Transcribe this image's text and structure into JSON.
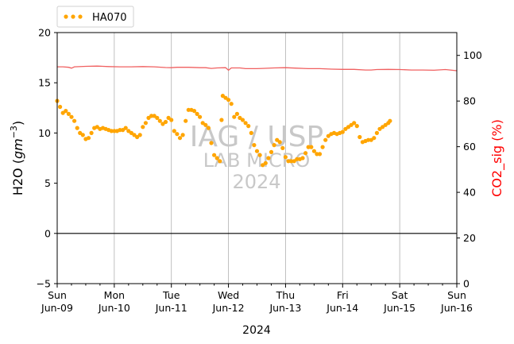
{
  "chart_data": {
    "type": "line",
    "x_range": [
      "2024-06-09",
      "2024-06-16"
    ],
    "x_ticks": [
      {
        "date": "2024-06-09",
        "day": "Sun",
        "label": "Jun-09"
      },
      {
        "date": "2024-06-10",
        "day": "Mon",
        "label": "Jun-10"
      },
      {
        "date": "2024-06-11",
        "day": "Tue",
        "label": "Jun-11"
      },
      {
        "date": "2024-06-12",
        "day": "Wed",
        "label": "Jun-12"
      },
      {
        "date": "2024-06-13",
        "day": "Thu",
        "label": "Jun-13"
      },
      {
        "date": "2024-06-14",
        "day": "Fri",
        "label": "Jun-14"
      },
      {
        "date": "2024-06-15",
        "day": "Sat",
        "label": "Jun-15"
      },
      {
        "date": "2024-06-16",
        "day": "Sun",
        "label": "Jun-16"
      }
    ],
    "xlabel": "2024",
    "ylabel_left": "H2O (gm^-3)",
    "ylabel_left_base": "H2O (",
    "ylabel_left_unit": "gm",
    "ylabel_left_exp": "−3",
    "ylabel_left_close": ")",
    "ylabel_right": "CO2_sig (%)",
    "ylim_left": [
      -5,
      20
    ],
    "yticks_left": [
      "−5",
      "0",
      "5",
      "10",
      "15",
      "20"
    ],
    "ylim_right": [
      0,
      110
    ],
    "yticks_right": [
      "0",
      "20",
      "40",
      "60",
      "80",
      "100"
    ],
    "grid": "vertical at day ticks",
    "zero_line": 0,
    "legend_position": "top-left outside",
    "watermark": {
      "line1": "IAG / USP",
      "line2": "LAB MICRO",
      "line3": "2024"
    },
    "colors": {
      "h2o": "#ffa500",
      "co2": "#f06060",
      "right_label": "#ff0000",
      "watermark": "#c8c8c8",
      "grid": "#b0b0b0"
    },
    "series": [
      {
        "name": "HA070",
        "axis": "left",
        "style": "dotted",
        "points": [
          [
            0.0,
            13.2
          ],
          [
            0.05,
            12.6
          ],
          [
            0.1,
            12.0
          ],
          [
            0.15,
            12.2
          ],
          [
            0.2,
            11.9
          ],
          [
            0.25,
            11.6
          ],
          [
            0.3,
            11.2
          ],
          [
            0.35,
            10.5
          ],
          [
            0.4,
            10.0
          ],
          [
            0.45,
            9.8
          ],
          [
            0.5,
            9.4
          ],
          [
            0.55,
            9.5
          ],
          [
            0.6,
            10.0
          ],
          [
            0.65,
            10.5
          ],
          [
            0.7,
            10.6
          ],
          [
            0.75,
            10.4
          ],
          [
            0.8,
            10.5
          ],
          [
            0.85,
            10.4
          ],
          [
            0.9,
            10.3
          ],
          [
            0.95,
            10.2
          ],
          [
            1.0,
            10.2
          ],
          [
            1.05,
            10.2
          ],
          [
            1.1,
            10.3
          ],
          [
            1.15,
            10.3
          ],
          [
            1.2,
            10.5
          ],
          [
            1.25,
            10.2
          ],
          [
            1.3,
            10.0
          ],
          [
            1.35,
            9.8
          ],
          [
            1.4,
            9.6
          ],
          [
            1.45,
            9.8
          ],
          [
            1.5,
            10.6
          ],
          [
            1.55,
            11.0
          ],
          [
            1.6,
            11.5
          ],
          [
            1.65,
            11.7
          ],
          [
            1.7,
            11.7
          ],
          [
            1.75,
            11.5
          ],
          [
            1.8,
            11.2
          ],
          [
            1.85,
            10.9
          ],
          [
            1.9,
            11.1
          ],
          [
            1.95,
            11.5
          ],
          [
            2.0,
            11.3
          ],
          [
            2.05,
            10.2
          ],
          [
            2.1,
            9.9
          ],
          [
            2.15,
            9.5
          ],
          [
            2.2,
            9.8
          ],
          [
            2.25,
            11.2
          ],
          [
            2.3,
            12.3
          ],
          [
            2.35,
            12.3
          ],
          [
            2.4,
            12.2
          ],
          [
            2.45,
            11.9
          ],
          [
            2.5,
            11.6
          ],
          [
            2.55,
            11.0
          ],
          [
            2.6,
            10.8
          ],
          [
            2.65,
            10.5
          ],
          [
            2.7,
            9.0
          ],
          [
            2.75,
            7.8
          ],
          [
            2.8,
            7.5
          ],
          [
            2.85,
            7.2
          ],
          [
            2.88,
            11.3
          ],
          [
            2.9,
            13.7
          ],
          [
            2.95,
            13.5
          ],
          [
            3.0,
            13.3
          ],
          [
            3.05,
            12.9
          ],
          [
            3.1,
            11.6
          ],
          [
            3.15,
            11.9
          ],
          [
            3.2,
            11.5
          ],
          [
            3.25,
            11.3
          ],
          [
            3.3,
            11.0
          ],
          [
            3.35,
            10.7
          ],
          [
            3.4,
            10.0
          ],
          [
            3.45,
            8.8
          ],
          [
            3.5,
            8.2
          ],
          [
            3.55,
            7.8
          ],
          [
            3.6,
            6.8
          ],
          [
            3.65,
            7.0
          ],
          [
            3.7,
            7.5
          ],
          [
            3.75,
            8.1
          ],
          [
            3.8,
            8.8
          ],
          [
            3.85,
            9.3
          ],
          [
            3.9,
            9.1
          ],
          [
            3.95,
            8.5
          ],
          [
            4.0,
            7.6
          ],
          [
            4.05,
            7.2
          ],
          [
            4.1,
            7.2
          ],
          [
            4.15,
            7.2
          ],
          [
            4.2,
            7.4
          ],
          [
            4.25,
            7.4
          ],
          [
            4.3,
            7.5
          ],
          [
            4.35,
            8.0
          ],
          [
            4.4,
            8.6
          ],
          [
            4.45,
            8.6
          ],
          [
            4.5,
            8.2
          ],
          [
            4.55,
            7.9
          ],
          [
            4.6,
            7.9
          ],
          [
            4.65,
            8.6
          ],
          [
            4.7,
            9.3
          ],
          [
            4.75,
            9.7
          ],
          [
            4.8,
            9.9
          ],
          [
            4.85,
            10.0
          ],
          [
            4.9,
            9.9
          ],
          [
            4.95,
            10.0
          ],
          [
            5.0,
            10.1
          ],
          [
            5.05,
            10.4
          ],
          [
            5.1,
            10.6
          ],
          [
            5.15,
            10.8
          ],
          [
            5.2,
            11.0
          ],
          [
            5.25,
            10.7
          ],
          [
            5.3,
            9.6
          ],
          [
            5.35,
            9.1
          ],
          [
            5.4,
            9.2
          ],
          [
            5.45,
            9.3
          ],
          [
            5.5,
            9.3
          ],
          [
            5.55,
            9.5
          ],
          [
            5.6,
            10.0
          ],
          [
            5.65,
            10.4
          ],
          [
            5.7,
            10.6
          ],
          [
            5.75,
            10.8
          ],
          [
            5.8,
            11.0
          ],
          [
            5.83,
            11.2
          ]
        ]
      },
      {
        "name": "CO2_sig",
        "axis": "right",
        "style": "line",
        "points": [
          [
            0.0,
            95.0
          ],
          [
            0.1,
            95.0
          ],
          [
            0.2,
            94.8
          ],
          [
            0.25,
            94.4
          ],
          [
            0.3,
            95.0
          ],
          [
            0.5,
            95.2
          ],
          [
            0.7,
            95.3
          ],
          [
            0.9,
            95.1
          ],
          [
            1.1,
            95.0
          ],
          [
            1.3,
            95.0
          ],
          [
            1.5,
            95.1
          ],
          [
            1.7,
            95.0
          ],
          [
            1.9,
            94.7
          ],
          [
            2.0,
            94.6
          ],
          [
            2.1,
            94.8
          ],
          [
            2.3,
            94.8
          ],
          [
            2.5,
            94.6
          ],
          [
            2.6,
            94.6
          ],
          [
            2.7,
            94.3
          ],
          [
            2.8,
            94.5
          ],
          [
            2.95,
            94.6
          ],
          [
            3.0,
            93.5
          ],
          [
            3.05,
            94.5
          ],
          [
            3.2,
            94.5
          ],
          [
            3.3,
            94.2
          ],
          [
            3.5,
            94.2
          ],
          [
            3.6,
            94.3
          ],
          [
            3.8,
            94.5
          ],
          [
            4.0,
            94.6
          ],
          [
            4.2,
            94.4
          ],
          [
            4.4,
            94.2
          ],
          [
            4.6,
            94.2
          ],
          [
            4.8,
            94.0
          ],
          [
            5.0,
            93.9
          ],
          [
            5.2,
            93.9
          ],
          [
            5.4,
            93.6
          ],
          [
            5.5,
            93.6
          ],
          [
            5.6,
            93.8
          ],
          [
            5.8,
            93.9
          ],
          [
            6.0,
            93.8
          ],
          [
            6.2,
            93.6
          ],
          [
            6.4,
            93.6
          ],
          [
            6.6,
            93.5
          ],
          [
            6.8,
            93.8
          ],
          [
            7.0,
            93.3
          ]
        ]
      }
    ]
  }
}
